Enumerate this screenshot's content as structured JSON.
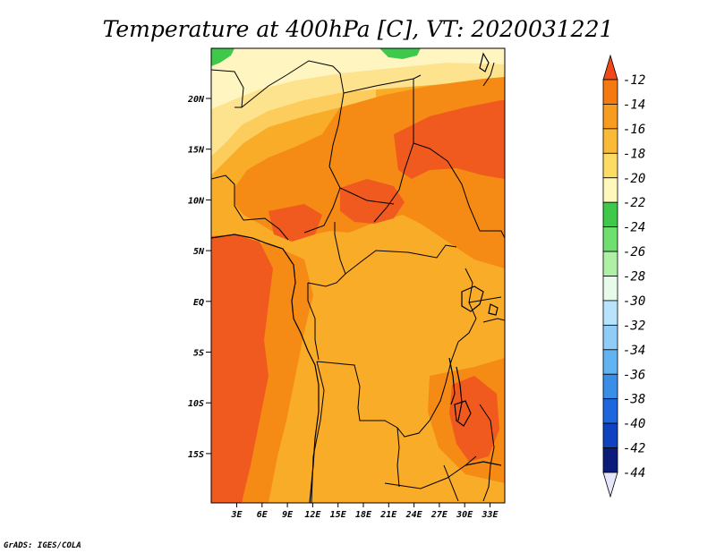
{
  "title": "Temperature at 400hPa [C], VT: 2020031221",
  "credit": "GrADS: IGES/COLA",
  "map": {
    "lat_labels": [
      "20N",
      "15N",
      "10N",
      "5N",
      "EQ",
      "5S",
      "10S",
      "15S"
    ],
    "lon_labels": [
      "3E",
      "6E",
      "9E",
      "12E",
      "15E",
      "18E",
      "21E",
      "24E",
      "27E",
      "30E",
      "33E"
    ],
    "fill_colors": {
      "c_minus12": "#f05a1e",
      "c_minus14": "#f58a14",
      "c_minus16": "#f9ac28",
      "c_minus18": "#fccd5d",
      "c_minus20": "#fde38e",
      "c_minus22": "#fff5c0",
      "c_minus24": "#3ec94a",
      "boundary": "#000000"
    }
  },
  "colorbar": {
    "labels": [
      "-12",
      "-14",
      "-16",
      "-18",
      "-20",
      "-22",
      "-24",
      "-26",
      "-28",
      "-30",
      "-32",
      "-34",
      "-36",
      "-38",
      "-40",
      "-42",
      "-44"
    ],
    "colors": [
      "#f0471b",
      "#f47a0f",
      "#f79c1f",
      "#fab937",
      "#fddc66",
      "#fff8bd",
      "#3ec94a",
      "#6fe070",
      "#aef0a5",
      "#e6fbea",
      "#b8e3fc",
      "#8fcdf8",
      "#61b4f1",
      "#3b8ee8",
      "#1e66de",
      "#0e42bf",
      "#0b1b7a",
      "#e6e6fb"
    ]
  }
}
